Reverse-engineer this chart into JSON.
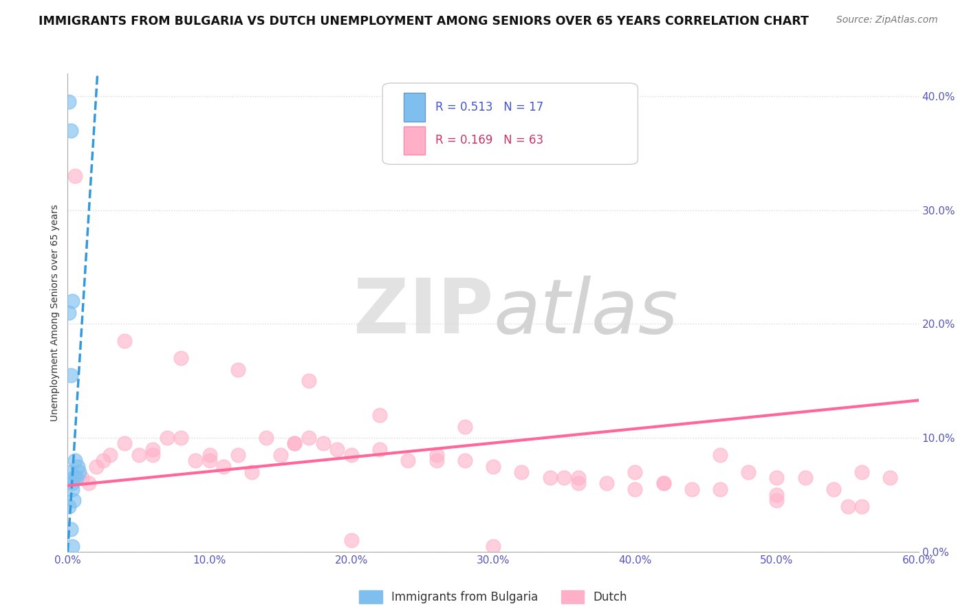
{
  "title": "IMMIGRANTS FROM BULGARIA VS DUTCH UNEMPLOYMENT AMONG SENIORS OVER 65 YEARS CORRELATION CHART",
  "source": "Source: ZipAtlas.com",
  "ylabel_label": "Unemployment Among Seniors over 65 years",
  "legend_label1": "Immigrants from Bulgaria",
  "legend_label2": "Dutch",
  "legend_r1": "R = 0.513",
  "legend_n1": "N = 17",
  "legend_r2": "R = 0.169",
  "legend_n2": "N = 63",
  "blue_x": [
    0.001,
    0.002,
    0.002,
    0.003,
    0.003,
    0.004,
    0.005,
    0.006,
    0.007,
    0.008,
    0.001,
    0.002,
    0.003,
    0.004,
    0.001,
    0.002,
    0.003
  ],
  "blue_y": [
    0.395,
    0.37,
    0.07,
    0.22,
    0.06,
    0.065,
    0.08,
    0.065,
    0.075,
    0.07,
    0.21,
    0.155,
    0.055,
    0.045,
    0.04,
    0.02,
    0.005
  ],
  "pink_x": [
    0.005,
    0.01,
    0.015,
    0.02,
    0.025,
    0.03,
    0.04,
    0.05,
    0.06,
    0.07,
    0.08,
    0.09,
    0.1,
    0.11,
    0.12,
    0.13,
    0.14,
    0.15,
    0.16,
    0.17,
    0.18,
    0.19,
    0.2,
    0.22,
    0.24,
    0.26,
    0.28,
    0.3,
    0.32,
    0.34,
    0.36,
    0.38,
    0.4,
    0.42,
    0.44,
    0.46,
    0.48,
    0.5,
    0.52,
    0.54,
    0.56,
    0.58,
    0.08,
    0.12,
    0.17,
    0.22,
    0.28,
    0.35,
    0.42,
    0.5,
    0.55,
    0.04,
    0.1,
    0.2,
    0.3,
    0.4,
    0.5,
    0.06,
    0.16,
    0.26,
    0.36,
    0.46,
    0.56
  ],
  "pink_y": [
    0.33,
    0.065,
    0.06,
    0.075,
    0.08,
    0.085,
    0.095,
    0.085,
    0.085,
    0.1,
    0.1,
    0.08,
    0.085,
    0.075,
    0.085,
    0.07,
    0.1,
    0.085,
    0.095,
    0.1,
    0.095,
    0.09,
    0.085,
    0.09,
    0.08,
    0.085,
    0.08,
    0.075,
    0.07,
    0.065,
    0.065,
    0.06,
    0.055,
    0.06,
    0.055,
    0.085,
    0.07,
    0.065,
    0.065,
    0.055,
    0.07,
    0.065,
    0.17,
    0.16,
    0.15,
    0.12,
    0.11,
    0.065,
    0.06,
    0.05,
    0.04,
    0.185,
    0.08,
    0.01,
    0.005,
    0.07,
    0.045,
    0.09,
    0.095,
    0.08,
    0.06,
    0.055,
    0.04
  ],
  "blue_line_x": [
    0.0,
    0.021
  ],
  "blue_line_y": [
    0.0,
    0.42
  ],
  "pink_line_x": [
    0.0,
    0.6
  ],
  "pink_line_y": [
    0.058,
    0.133
  ],
  "xlim": [
    0.0,
    0.6
  ],
  "ylim": [
    0.0,
    0.42
  ],
  "xticks": [
    0.0,
    0.1,
    0.2,
    0.3,
    0.4,
    0.5,
    0.6
  ],
  "yticks": [
    0.0,
    0.1,
    0.2,
    0.3,
    0.4
  ],
  "background_color": "#ffffff",
  "blue_color": "#7fbfef",
  "pink_color": "#ffb0c8",
  "blue_line_color": "#3399dd",
  "pink_line_color": "#ff6699",
  "grid_color": "#d8d8d8",
  "tick_color": "#5555bb",
  "title_color": "#111111",
  "source_color": "#777777",
  "ylabel_color": "#333333"
}
